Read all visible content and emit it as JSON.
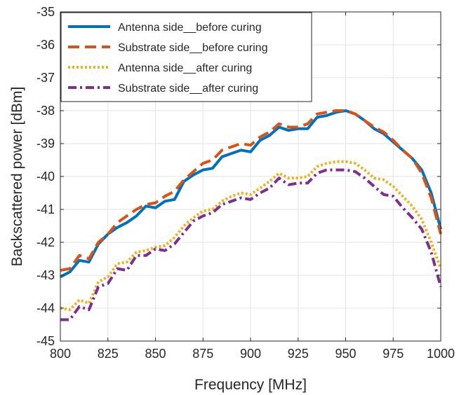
{
  "chart_data": {
    "type": "line",
    "title": "",
    "xlabel": "Frequency [MHz]",
    "ylabel": "Backscattered power [dBm]",
    "xlim": [
      800,
      1000
    ],
    "ylim": [
      -45,
      -35
    ],
    "xticks": [
      800,
      825,
      850,
      875,
      900,
      925,
      950,
      975,
      1000
    ],
    "yticks": [
      -45,
      -44,
      -43,
      -42,
      -41,
      -40,
      -39,
      -38,
      -37,
      -36,
      -35
    ],
    "grid": true,
    "legend_position": "top-left",
    "x": [
      800,
      805,
      810,
      815,
      820,
      825,
      830,
      835,
      840,
      845,
      850,
      855,
      860,
      865,
      870,
      875,
      880,
      885,
      890,
      895,
      900,
      905,
      910,
      915,
      920,
      925,
      930,
      935,
      940,
      945,
      950,
      955,
      960,
      965,
      970,
      975,
      980,
      985,
      990,
      995,
      1000
    ],
    "series": [
      {
        "name": "Antenna side__before curing",
        "color": "#0072bd",
        "style": "solid",
        "values": [
          -43.05,
          -42.9,
          -42.55,
          -42.6,
          -42.05,
          -41.75,
          -41.55,
          -41.4,
          -41.2,
          -40.9,
          -40.95,
          -40.75,
          -40.7,
          -40.15,
          -39.95,
          -39.8,
          -39.75,
          -39.4,
          -39.3,
          -39.2,
          -39.25,
          -38.9,
          -38.75,
          -38.5,
          -38.6,
          -38.55,
          -38.55,
          -38.2,
          -38.15,
          -38.05,
          -38.0,
          -38.1,
          -38.3,
          -38.55,
          -38.7,
          -38.95,
          -39.2,
          -39.45,
          -39.8,
          -40.5,
          -41.6
        ]
      },
      {
        "name": "Substrate side__before curing",
        "color": "#d95319",
        "style": "dashed",
        "values": [
          -42.85,
          -42.8,
          -42.4,
          -42.5,
          -42.0,
          -41.75,
          -41.4,
          -41.2,
          -41.0,
          -40.85,
          -40.8,
          -40.6,
          -40.45,
          -40.1,
          -39.85,
          -39.6,
          -39.5,
          -39.2,
          -39.1,
          -39.0,
          -39.05,
          -38.8,
          -38.65,
          -38.4,
          -38.5,
          -38.5,
          -38.4,
          -38.1,
          -38.05,
          -38.0,
          -38.0,
          -38.1,
          -38.3,
          -38.5,
          -38.65,
          -38.9,
          -39.2,
          -39.45,
          -39.9,
          -40.65,
          -41.75
        ]
      },
      {
        "name": "Antenna side__after curing",
        "color": "#edb120",
        "style": "dotted",
        "values": [
          -44.0,
          -44.05,
          -43.75,
          -43.85,
          -43.2,
          -43.05,
          -42.65,
          -42.6,
          -42.3,
          -42.25,
          -42.15,
          -42.1,
          -41.85,
          -41.5,
          -41.25,
          -41.05,
          -41.0,
          -40.75,
          -40.6,
          -40.5,
          -40.55,
          -40.35,
          -40.15,
          -39.9,
          -40.05,
          -40.05,
          -40.0,
          -39.7,
          -39.6,
          -39.55,
          -39.55,
          -39.6,
          -39.8,
          -40.05,
          -40.1,
          -40.3,
          -40.6,
          -40.9,
          -41.3,
          -42.0,
          -42.8
        ]
      },
      {
        "name": "Substrate side__after curing",
        "color": "#7e2f8e",
        "style": "dashdot",
        "values": [
          -44.35,
          -44.35,
          -43.95,
          -44.05,
          -43.35,
          -43.25,
          -42.8,
          -42.85,
          -42.4,
          -42.4,
          -42.2,
          -42.25,
          -42.05,
          -41.7,
          -41.35,
          -41.2,
          -41.1,
          -40.85,
          -40.75,
          -40.65,
          -40.7,
          -40.5,
          -40.35,
          -40.05,
          -40.25,
          -40.2,
          -40.2,
          -39.9,
          -39.8,
          -39.8,
          -39.8,
          -39.85,
          -40.05,
          -40.3,
          -40.55,
          -40.6,
          -40.95,
          -41.25,
          -41.6,
          -42.3,
          -43.35
        ]
      }
    ]
  }
}
